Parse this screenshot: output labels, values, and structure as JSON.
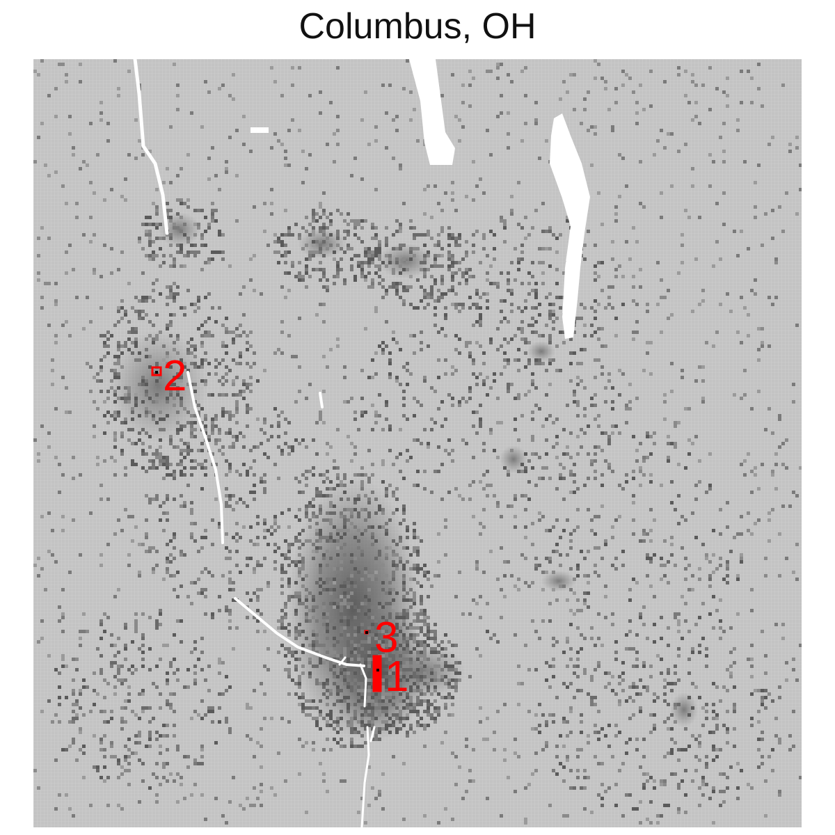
{
  "map": {
    "title": "Columbus, OH",
    "colors": {
      "background": "#c3c3c3",
      "grid_line": "#d8d8d8",
      "density_low": "#9a9a9a",
      "density_mid": "#6e6e6e",
      "density_high": "#4e4e4e",
      "water": "#ffffff",
      "marker": "#ff0000",
      "marker_point": "#000000"
    },
    "markers": [
      {
        "label": "1",
        "icon": "red-cluster-highlight"
      },
      {
        "label": "2",
        "icon": "red-cluster-highlight"
      },
      {
        "label": "3",
        "icon": "red-cluster-highlight"
      }
    ]
  }
}
